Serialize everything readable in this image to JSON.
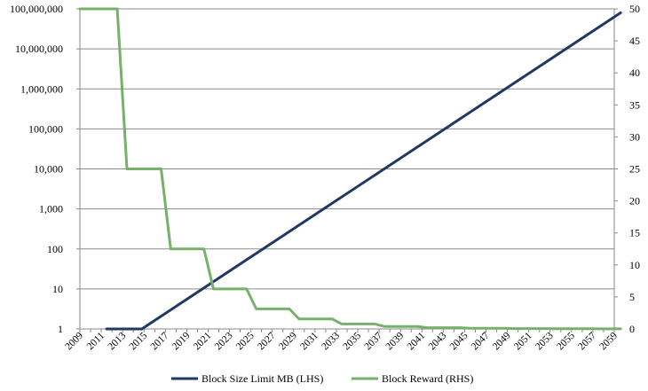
{
  "chart_data": {
    "type": "line",
    "x_axis": {
      "tick_labels": [
        "2009",
        "2011",
        "2013",
        "2015",
        "2017",
        "2019",
        "2021",
        "2023",
        "2025",
        "2027",
        "2029",
        "2031",
        "2033",
        "2035",
        "2037",
        "2039",
        "2041",
        "2043",
        "2045",
        "2047",
        "2049",
        "2051",
        "2053",
        "2055",
        "2057",
        "2059"
      ],
      "range": [
        2009,
        2059
      ]
    },
    "y_left": {
      "scale": "log",
      "range": [
        1,
        100000000
      ],
      "tick_labels": [
        "1",
        "10",
        "100",
        "1,000",
        "10,000",
        "100,000",
        "1,000,000",
        "10,000,000",
        "100,000,000"
      ]
    },
    "y_right": {
      "scale": "linear",
      "range": [
        0,
        50
      ],
      "tick_labels": [
        "0",
        "5",
        "10",
        "15",
        "20",
        "25",
        "30",
        "35",
        "40",
        "45",
        "50"
      ]
    },
    "grid": "horizontal",
    "legend_position": "bottom",
    "series": [
      {
        "name": "Block Size Limit MB (LHS)",
        "axis": "left",
        "color": "#1f3864",
        "points": [
          [
            2011.5,
            1
          ],
          [
            2014.8,
            1
          ],
          [
            2059.6,
            80000000
          ]
        ]
      },
      {
        "name": "Block Reward (RHS)",
        "axis": "right",
        "color": "#77b06b",
        "points": [
          [
            2009,
            50
          ],
          [
            2012.5,
            50
          ],
          [
            2013.4,
            25
          ],
          [
            2016.6,
            25
          ],
          [
            2017.5,
            12.5
          ],
          [
            2020.6,
            12.5
          ],
          [
            2021.5,
            6.25
          ],
          [
            2024.6,
            6.25
          ],
          [
            2025.5,
            3.125
          ],
          [
            2028.6,
            3.125
          ],
          [
            2029.5,
            1.5625
          ],
          [
            2032.6,
            1.5625
          ],
          [
            2033.5,
            0.78125
          ],
          [
            2036.6,
            0.78125
          ],
          [
            2037.5,
            0.390625
          ],
          [
            2040.6,
            0.390625
          ],
          [
            2041.5,
            0.195
          ],
          [
            2044.6,
            0.195
          ],
          [
            2045.5,
            0.098
          ],
          [
            2048.6,
            0.098
          ],
          [
            2049.5,
            0.049
          ],
          [
            2052.6,
            0.049
          ],
          [
            2053.5,
            0.024
          ],
          [
            2056.6,
            0.024
          ],
          [
            2057.5,
            0.012
          ],
          [
            2059.6,
            0.012
          ]
        ]
      }
    ]
  }
}
